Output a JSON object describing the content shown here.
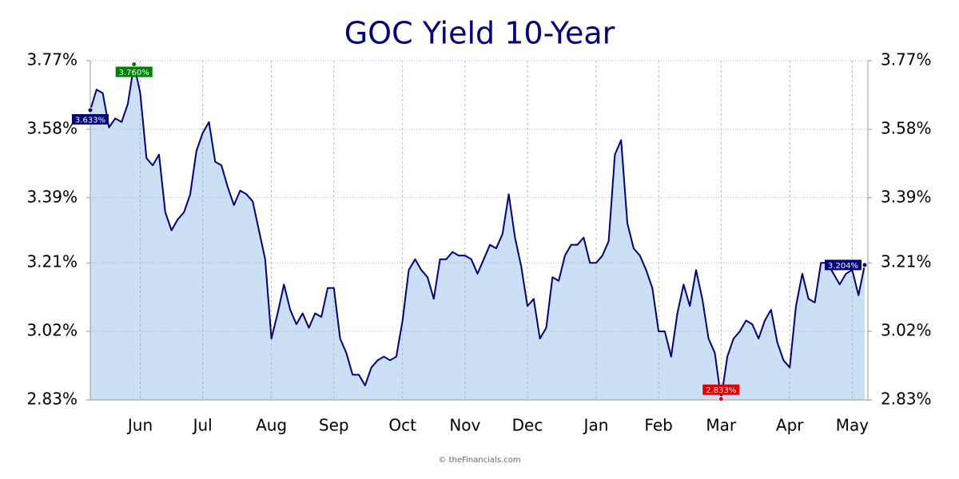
{
  "chart_data": {
    "type": "area",
    "title": "GOC Yield 10-Year",
    "footer": "© theFinancials.com",
    "color": "#000080",
    "fill": "#cce0f5",
    "label_color": "#000080",
    "max_label_color": "#008000",
    "min_label_color": "#e00000",
    "grid": true,
    "ylim": [
      2.83,
      3.77
    ],
    "yticks": [
      {
        "value": 2.83,
        "label": "2.83%"
      },
      {
        "value": 3.02,
        "label": "3.02%"
      },
      {
        "value": 3.21,
        "label": "3.21%"
      },
      {
        "value": 3.39,
        "label": "3.39%"
      },
      {
        "value": 3.58,
        "label": "3.58%"
      },
      {
        "value": 3.77,
        "label": "3.77%"
      }
    ],
    "y2lim": [
      2.83,
      3.77
    ],
    "y2ticks": [
      {
        "value": 2.83,
        "label": "2.83%"
      },
      {
        "value": 3.02,
        "label": "3.02%"
      },
      {
        "value": 3.21,
        "label": "3.21%"
      },
      {
        "value": 3.39,
        "label": "3.39%"
      },
      {
        "value": 3.58,
        "label": "3.58%"
      },
      {
        "value": 3.77,
        "label": "3.77%"
      }
    ],
    "categories": [
      null,
      null,
      null,
      null,
      null,
      null,
      null,
      null,
      "Jun",
      null,
      null,
      null,
      null,
      null,
      null,
      null,
      null,
      null,
      "Jul",
      null,
      null,
      null,
      null,
      null,
      null,
      null,
      null,
      null,
      null,
      "Aug",
      null,
      null,
      null,
      null,
      null,
      null,
      null,
      null,
      null,
      "Sep",
      null,
      null,
      null,
      null,
      null,
      null,
      null,
      null,
      null,
      null,
      "Oct",
      null,
      null,
      null,
      null,
      null,
      null,
      null,
      null,
      null,
      "Nov",
      null,
      null,
      null,
      null,
      null,
      null,
      null,
      null,
      null,
      "Dec",
      null,
      null,
      null,
      null,
      null,
      null,
      null,
      null,
      null,
      null,
      "Jan",
      null,
      null,
      null,
      null,
      null,
      null,
      null,
      null,
      null,
      "Feb",
      null,
      null,
      null,
      null,
      null,
      null,
      null,
      null,
      null,
      "Mar",
      null,
      null,
      null,
      null,
      null,
      null,
      null,
      null,
      null,
      null,
      "Apr",
      null,
      null,
      null,
      null,
      null,
      null,
      null,
      null,
      null,
      "May",
      null,
      null
    ],
    "values": [
      3.633,
      3.69,
      3.68,
      3.585,
      3.61,
      3.6,
      3.65,
      3.76,
      3.68,
      3.5,
      3.48,
      3.51,
      3.35,
      3.3,
      3.33,
      3.35,
      3.4,
      3.52,
      3.57,
      3.6,
      3.49,
      3.48,
      3.42,
      3.37,
      3.41,
      3.4,
      3.38,
      3.3,
      3.22,
      3.0,
      3.07,
      3.15,
      3.08,
      3.04,
      3.07,
      3.03,
      3.07,
      3.06,
      3.14,
      3.14,
      3.0,
      2.96,
      2.9,
      2.9,
      2.87,
      2.92,
      2.94,
      2.95,
      2.94,
      2.95,
      3.05,
      3.19,
      3.22,
      3.19,
      3.17,
      3.11,
      3.22,
      3.22,
      3.24,
      3.23,
      3.23,
      3.22,
      3.18,
      3.22,
      3.26,
      3.25,
      3.29,
      3.4,
      3.28,
      3.2,
      3.09,
      3.11,
      3.0,
      3.03,
      3.17,
      3.16,
      3.23,
      3.26,
      3.26,
      3.28,
      3.21,
      3.21,
      3.23,
      3.27,
      3.51,
      3.55,
      3.32,
      3.25,
      3.23,
      3.19,
      3.14,
      3.02,
      3.02,
      2.95,
      3.07,
      3.15,
      3.09,
      3.19,
      3.11,
      3.0,
      2.96,
      2.833,
      2.95,
      3.0,
      3.02,
      3.05,
      3.04,
      3.0,
      3.05,
      3.08,
      2.99,
      2.94,
      2.92,
      3.09,
      3.18,
      3.11,
      3.1,
      3.21,
      3.21,
      3.18,
      3.15,
      3.18,
      3.19,
      3.12,
      3.204
    ],
    "value_labels": [
      "3.633%",
      null,
      null,
      null,
      null,
      null,
      null,
      "3.760%",
      null,
      null,
      null,
      null,
      null,
      null,
      null,
      null,
      null,
      null,
      null,
      null,
      null,
      null,
      null,
      null,
      null,
      null,
      null,
      null,
      null,
      null,
      null,
      null,
      null,
      null,
      null,
      null,
      null,
      null,
      null,
      null,
      null,
      null,
      null,
      null,
      null,
      null,
      null,
      null,
      null,
      null,
      null,
      null,
      null,
      null,
      null,
      null,
      null,
      null,
      null,
      null,
      null,
      null,
      null,
      null,
      null,
      null,
      null,
      null,
      null,
      null,
      null,
      null,
      null,
      null,
      null,
      null,
      null,
      null,
      null,
      null,
      null,
      null,
      null,
      null,
      null,
      null,
      null,
      null,
      null,
      null,
      null,
      null,
      null,
      null,
      null,
      null,
      null,
      null,
      null,
      null,
      null,
      "2.833%",
      null,
      null,
      null,
      null,
      null,
      null,
      null,
      null,
      null,
      null,
      null,
      null,
      null,
      null,
      null,
      null,
      null,
      null,
      null,
      null,
      null,
      null,
      "3.204%"
    ]
  }
}
